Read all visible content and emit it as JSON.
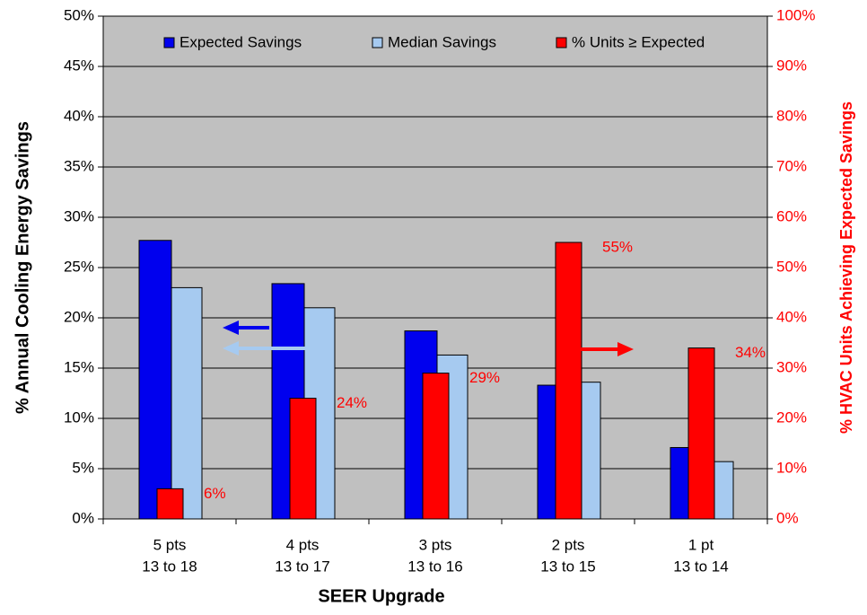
{
  "chart_data": {
    "type": "bar",
    "x_label": "SEER Upgrade",
    "y_label": "% Annual Cooling Energy Savings",
    "y2_label": "% HVAC Units Achieving Expected Savings",
    "categories": [
      [
        "5 pts",
        "13 to 18"
      ],
      [
        "4 pts",
        "13 to 17"
      ],
      [
        "3 pts",
        "13 to 16"
      ],
      [
        "2 pts",
        "13 to 15"
      ],
      [
        "1 pt",
        "13 to 14"
      ]
    ],
    "series": [
      {
        "name": "Expected Savings",
        "color": "#0000ee",
        "values": [
          27.7,
          23.4,
          18.7,
          13.3,
          7.1
        ]
      },
      {
        "name": "Median Savings",
        "color": "#a6caf0",
        "values": [
          23.0,
          21.0,
          16.3,
          13.6,
          5.7
        ]
      },
      {
        "name": "% Units ≥ Expected",
        "color": "#ff0000",
        "axis": "y2",
        "values": [
          6,
          24,
          29,
          55,
          34
        ],
        "value_labels": [
          "6%",
          "24%",
          "29%",
          "55%",
          "34%"
        ]
      }
    ],
    "ylim": [
      0,
      50
    ],
    "yticks": [
      {
        "value": 0,
        "label": "0%"
      },
      {
        "value": 5,
        "label": "5%"
      },
      {
        "value": 10,
        "label": "10%"
      },
      {
        "value": 15,
        "label": "15%"
      },
      {
        "value": 20,
        "label": "20%"
      },
      {
        "value": 25,
        "label": "25%"
      },
      {
        "value": 30,
        "label": "30%"
      },
      {
        "value": 35,
        "label": "35%"
      },
      {
        "value": 40,
        "label": "40%"
      },
      {
        "value": 45,
        "label": "45%"
      },
      {
        "value": 50,
        "label": "50%"
      }
    ],
    "y2lim": [
      0,
      100
    ],
    "y2ticks": [
      {
        "value": 0,
        "label": "0%"
      },
      {
        "value": 10,
        "label": "10%"
      },
      {
        "value": 20,
        "label": "20%"
      },
      {
        "value": 30,
        "label": "30%"
      },
      {
        "value": 40,
        "label": "40%"
      },
      {
        "value": 50,
        "label": "50%"
      },
      {
        "value": 60,
        "label": "60%"
      },
      {
        "value": 70,
        "label": "70%"
      },
      {
        "value": 80,
        "label": "80%"
      },
      {
        "value": 90,
        "label": "90%"
      },
      {
        "value": 100,
        "label": "100%"
      }
    ],
    "grid": true,
    "legend": "top",
    "background": "#c0c0c0"
  }
}
